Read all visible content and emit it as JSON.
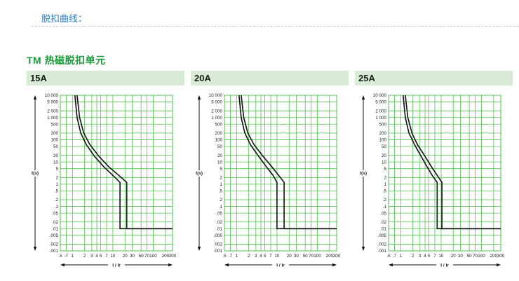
{
  "header": {
    "title": "脱扣曲线："
  },
  "section": {
    "title": "TM 热磁脱扣单元"
  },
  "colors": {
    "title_blue": "#2a7fc0",
    "section_green": "#1f9a3a",
    "panel_header_bg": "#d8ebd4",
    "grid": "#4fc24a",
    "curve": "#111111"
  },
  "chart_data": [
    {
      "type": "line",
      "title": "15A",
      "xlabel": "I / Ir",
      "ylabel": "t(s)",
      "xscale": "log",
      "yscale": "log",
      "xlim": [
        0.5,
        300
      ],
      "ylim": [
        0.001,
        10000
      ],
      "xticks": [
        ".5",
        ".7",
        "1",
        "2",
        "3",
        "4",
        "5",
        "7",
        "10",
        "20",
        "30",
        "50",
        "70",
        "100",
        "200",
        "300"
      ],
      "yticks": [
        "10 000",
        "5 000",
        "2 000",
        "1 000",
        "500",
        "200",
        "100",
        "50",
        "20",
        "10",
        "5",
        "2",
        "1",
        ".5",
        ".2",
        ".1",
        ".05",
        ".02",
        ".01",
        ".005",
        ".002",
        ".001"
      ],
      "grid": true,
      "series": [
        {
          "x": [
            1.15,
            1.3,
            1.6,
            2.2,
            3.5,
            6,
            10,
            15,
            15,
            300
          ],
          "y": [
            10000,
            1000,
            200,
            60,
            18,
            6,
            2.5,
            1.2,
            0.01,
            0.01
          ]
        },
        {
          "x": [
            1.3,
            1.5,
            1.9,
            2.7,
            4.5,
            8,
            14,
            22,
            22,
            300
          ],
          "y": [
            10000,
            1000,
            200,
            60,
            18,
            6,
            2.5,
            1.2,
            0.01,
            0.01
          ]
        }
      ]
    },
    {
      "type": "line",
      "title": "20A",
      "xlabel": "I / Ir",
      "ylabel": "t(s)",
      "xscale": "log",
      "yscale": "log",
      "xlim": [
        0.5,
        300
      ],
      "ylim": [
        0.001,
        10000
      ],
      "xticks": [
        ".5",
        ".7",
        "1",
        "2",
        "3",
        "4",
        "5",
        "7",
        "10",
        "20",
        "30",
        "50",
        "70",
        "100",
        "200",
        "300"
      ],
      "yticks": [
        "10 000",
        "5 000",
        "2 000",
        "1 000",
        "500",
        "200",
        "100",
        "50",
        "20",
        "10",
        "5",
        "2",
        "1",
        ".5",
        ".2",
        ".1",
        ".05",
        ".02",
        ".01",
        ".005",
        ".002",
        ".001"
      ],
      "grid": true,
      "series": [
        {
          "x": [
            1.15,
            1.3,
            1.6,
            2.2,
            3.5,
            5.5,
            8,
            10,
            10,
            300
          ],
          "y": [
            10000,
            1000,
            200,
            60,
            18,
            6,
            2.5,
            1.2,
            0.01,
            0.01
          ]
        },
        {
          "x": [
            1.3,
            1.5,
            1.9,
            2.7,
            4.5,
            7.5,
            11,
            15,
            15,
            300
          ],
          "y": [
            10000,
            1000,
            200,
            60,
            18,
            6,
            2.5,
            1.2,
            0.01,
            0.01
          ]
        }
      ]
    },
    {
      "type": "line",
      "title": "25A",
      "xlabel": "I / Ir",
      "ylabel": "t(s)",
      "xscale": "log",
      "yscale": "log",
      "xlim": [
        0.5,
        300
      ],
      "ylim": [
        0.001,
        10000
      ],
      "xticks": [
        ".5",
        ".7",
        "1",
        "2",
        "3",
        "4",
        "5",
        "7",
        "10",
        "20",
        "30",
        "50",
        "70",
        "100",
        "200",
        "300"
      ],
      "yticks": [
        "10 000",
        "5 000",
        "2 000",
        "1 000",
        "500",
        "200",
        "100",
        "50",
        "20",
        "10",
        "5",
        "2",
        "1",
        ".5",
        ".2",
        ".1",
        ".05",
        ".02",
        ".01",
        ".005",
        ".002",
        ".001"
      ],
      "grid": true,
      "series": [
        {
          "x": [
            1.15,
            1.3,
            1.6,
            2.2,
            3.2,
            4.5,
            6,
            8,
            8,
            300
          ],
          "y": [
            10000,
            1000,
            200,
            60,
            18,
            6,
            2.5,
            1.2,
            0.01,
            0.01
          ]
        },
        {
          "x": [
            1.3,
            1.5,
            1.9,
            2.6,
            4,
            5.8,
            8,
            10.5,
            10.5,
            300
          ],
          "y": [
            10000,
            1000,
            200,
            60,
            18,
            6,
            2.5,
            1.2,
            0.01,
            0.01
          ]
        }
      ]
    }
  ]
}
